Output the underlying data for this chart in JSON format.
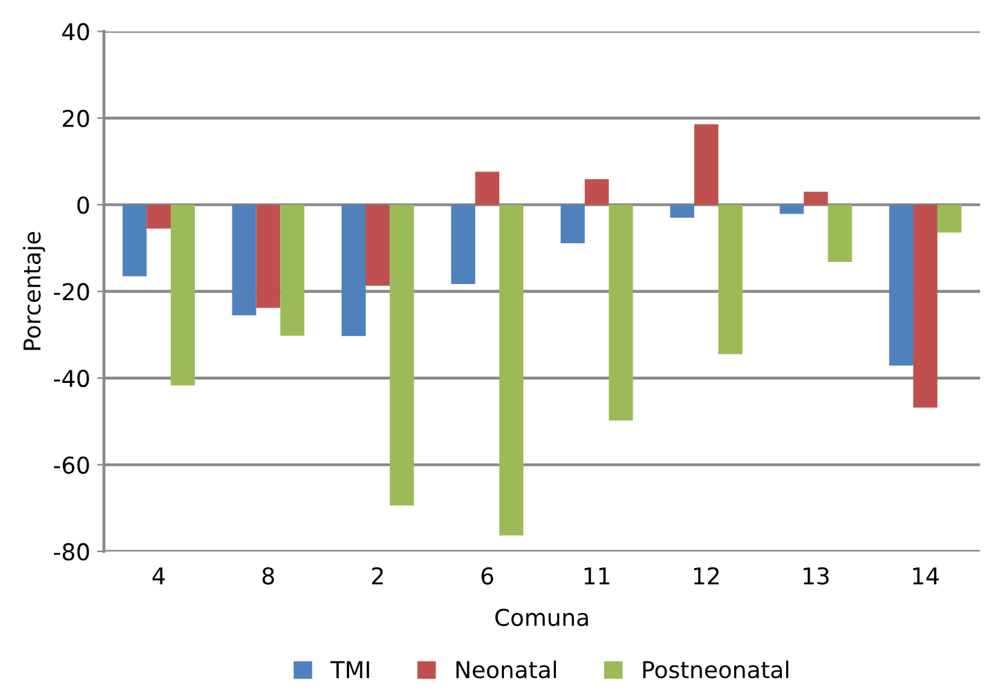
{
  "chart_data": {
    "type": "bar",
    "xlabel": "Comuna",
    "ylabel": "Porcentaje",
    "categories": [
      "4",
      "8",
      "2",
      "6",
      "11",
      "12",
      "13",
      "14"
    ],
    "series": [
      {
        "name": "TMI",
        "color": "#4f81bd",
        "values": [
          -16.5,
          -25.5,
          -30.3,
          -18.3,
          -8.9,
          -3.0,
          -2.1,
          -37.1
        ]
      },
      {
        "name": "Neonatal",
        "color": "#c0504d",
        "values": [
          -5.5,
          -23.8,
          -18.7,
          7.6,
          5.9,
          18.6,
          3.0,
          -46.8
        ]
      },
      {
        "name": "Postneonatal",
        "color": "#9bbb59",
        "values": [
          -41.7,
          -30.2,
          -69.4,
          -76.3,
          -49.8,
          -34.5,
          -13.2,
          -6.4
        ]
      }
    ],
    "ylim": [
      -80,
      40
    ],
    "yticks": [
      -80,
      -60,
      -40,
      -20,
      0,
      20,
      40
    ],
    "grid": "y",
    "legend": "bottom"
  }
}
